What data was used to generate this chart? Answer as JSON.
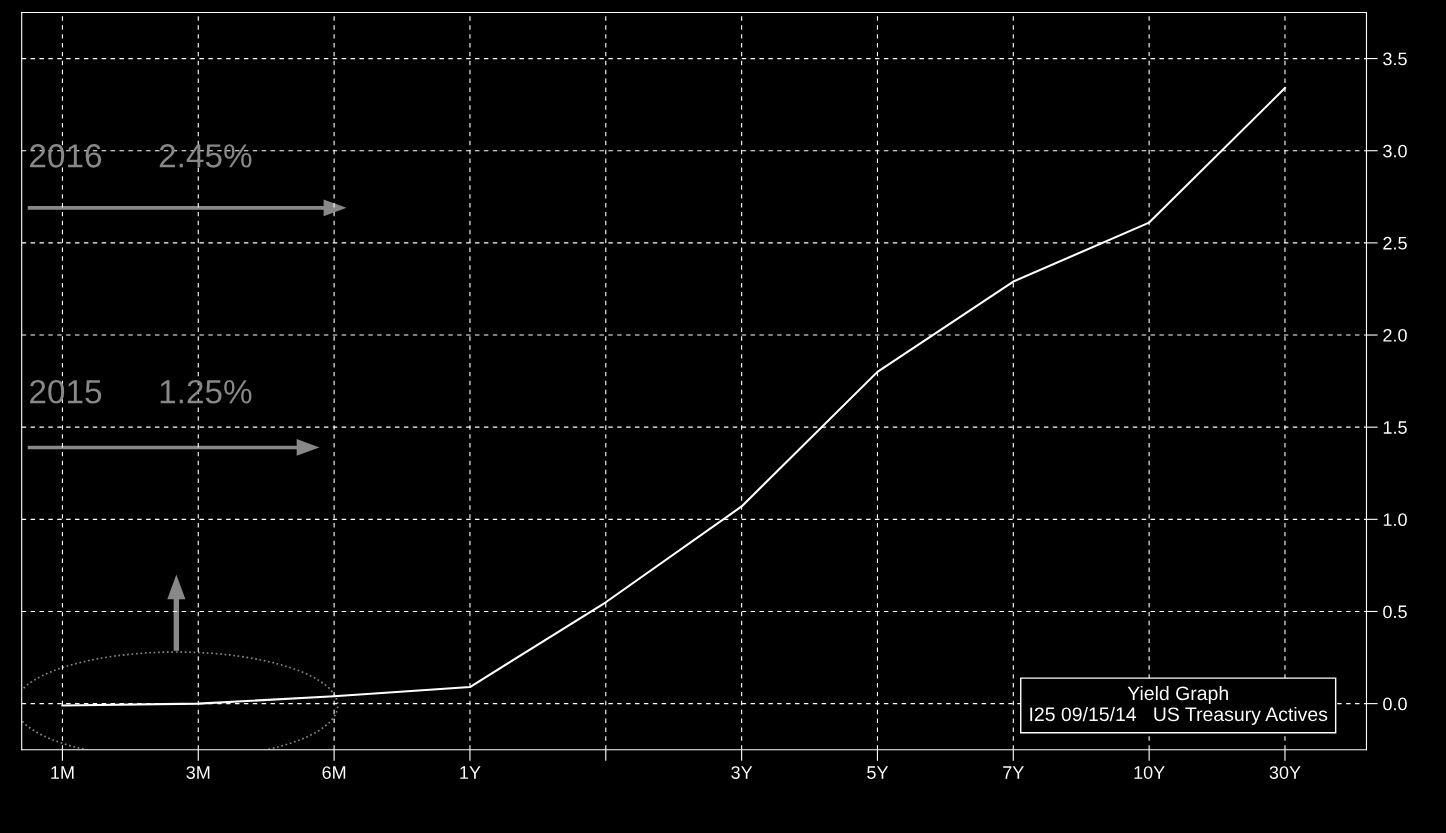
{
  "chart_data": {
    "type": "line",
    "categories": [
      "1M",
      "3M",
      "6M",
      "1Y",
      null,
      "3Y",
      "5Y",
      "7Y",
      "10Y",
      "30Y"
    ],
    "series": [
      {
        "color": "#ffffff",
        "values": [
          -0.01,
          0.0,
          0.04,
          0.09,
          0.55,
          1.07,
          1.8,
          2.29,
          2.61,
          3.34
        ]
      }
    ],
    "ylim": [
      -0.25,
      3.75
    ],
    "yticks": [
      {
        "value": 0,
        "label": "0.0"
      },
      {
        "value": 0.5,
        "label": "0.5"
      },
      {
        "value": 1,
        "label": "1.0"
      },
      {
        "value": 1.5,
        "label": "1.5"
      },
      {
        "value": 2,
        "label": "2.0"
      },
      {
        "value": 2.5,
        "label": "2.5"
      },
      {
        "value": 3,
        "label": "3.0"
      },
      {
        "value": 3.5,
        "label": "3.5"
      }
    ],
    "grid": true,
    "line_style": "solid",
    "marker": "none",
    "annotations": [
      "2016      2.45%",
      "2015      1.25%",
      "Yield Graph",
      "I25 09/15/14   US Treasury Actives"
    ]
  }
}
